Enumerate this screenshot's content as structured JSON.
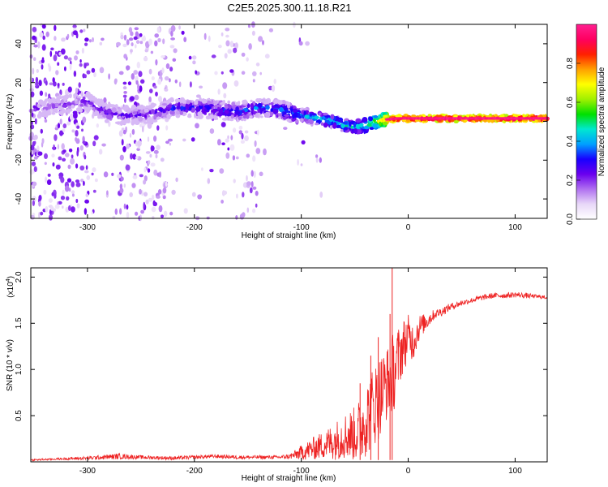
{
  "title": "C2E5.2025.300.11.18.R21",
  "chart_data": [
    {
      "type": "heatmap",
      "xlabel": "Height of straight line (km)",
      "ylabel": "Frequency (Hz)",
      "xlim": [
        -353,
        130
      ],
      "ylim": [
        -50,
        50
      ],
      "x_ticks": [
        -300,
        -200,
        -100,
        0,
        100
      ],
      "x_tick_labels": [
        "-300",
        "-200",
        "-100",
        "0",
        "100"
      ],
      "y_ticks": [
        -40,
        -20,
        0,
        20,
        40
      ],
      "y_tick_labels": [
        "-40",
        "-20",
        "0",
        "20",
        "40"
      ],
      "colorbar": {
        "label": "Normalized spectral amplitude",
        "range": [
          0,
          1
        ],
        "ticks": [
          0.0,
          0.2,
          0.4,
          0.6,
          0.8
        ],
        "tick_labels": [
          "0.0",
          "0.2",
          "0.4",
          "0.6",
          "0.8"
        ],
        "colors": [
          "#ffffff",
          "#e8d8f8",
          "#b070f0",
          "#6a00ee",
          "#1800ff",
          "#00a0ff",
          "#00e8d0",
          "#00e000",
          "#a0f000",
          "#ffff00",
          "#ffa000",
          "#ff2000",
          "#ff0060",
          "#ff2090"
        ]
      },
      "center_track": {
        "heights": [
          -345,
          -300,
          -280,
          -260,
          -240,
          -220,
          -200,
          -180,
          -160,
          -140,
          -120,
          -100,
          -90,
          -80,
          -70,
          -60,
          -50,
          -40,
          -30,
          -20,
          -10,
          0,
          50,
          100,
          130
        ],
        "frequency": [
          7,
          10,
          4,
          3,
          4,
          7,
          7,
          6,
          5,
          7,
          6,
          3,
          2,
          1,
          0,
          -2,
          -3,
          -2,
          0,
          1,
          1.5,
          1.5,
          1.5,
          1.5,
          1.5
        ],
        "amplitude": [
          0.18,
          0.22,
          0.26,
          0.24,
          0.25,
          0.28,
          0.3,
          0.32,
          0.33,
          0.34,
          0.36,
          0.38,
          0.4,
          0.42,
          0.44,
          0.45,
          0.46,
          0.5,
          0.62,
          0.82,
          0.95,
          0.96,
          0.95,
          0.95,
          0.96
        ]
      }
    },
    {
      "type": "line",
      "series_name": "SNR",
      "color": "#ee2222",
      "xlabel": "Height of straight line (km)",
      "ylabel": "SNR (10 * v/v)",
      "scale_label": "(x10",
      "scale_exponent": "4",
      "xlim": [
        -353,
        130
      ],
      "ylim": [
        0,
        2.1
      ],
      "x_ticks": [
        -300,
        -200,
        -100,
        0,
        100
      ],
      "x_tick_labels": [
        "-300",
        "-200",
        "-100",
        "0",
        "100"
      ],
      "y_ticks": [
        0.5,
        1.0,
        1.5,
        2.0
      ],
      "y_tick_labels": [
        "0.5",
        "1.0",
        "1.5",
        "2.0"
      ],
      "x": [
        -353,
        -330,
        -300,
        -270,
        -250,
        -220,
        -200,
        -180,
        -160,
        -140,
        -120,
        -110,
        -100,
        -90,
        -80,
        -70,
        -60,
        -50,
        -45,
        -40,
        -35,
        -30,
        -25,
        -20,
        -17,
        -15,
        -12,
        -10,
        -5,
        0,
        5,
        10,
        15,
        20,
        25,
        30,
        40,
        50,
        60,
        70,
        80,
        90,
        100,
        110,
        120,
        130
      ],
      "y": [
        0.02,
        0.03,
        0.04,
        0.06,
        0.05,
        0.04,
        0.05,
        0.06,
        0.05,
        0.05,
        0.05,
        0.06,
        0.1,
        0.14,
        0.18,
        0.22,
        0.28,
        0.3,
        0.35,
        0.45,
        0.55,
        0.65,
        0.75,
        0.85,
        0.9,
        0.95,
        1.0,
        1.1,
        1.25,
        1.35,
        1.3,
        1.45,
        1.5,
        1.55,
        1.6,
        1.62,
        1.68,
        1.72,
        1.75,
        1.78,
        1.8,
        1.8,
        1.81,
        1.8,
        1.79,
        1.78
      ],
      "noise_amplitude": [
        0.01,
        0.01,
        0.02,
        0.03,
        0.02,
        0.02,
        0.02,
        0.02,
        0.02,
        0.02,
        0.02,
        0.03,
        0.08,
        0.12,
        0.15,
        0.2,
        0.25,
        0.3,
        0.35,
        0.4,
        0.45,
        0.45,
        0.45,
        0.4,
        0.4,
        0.45,
        0.4,
        0.35,
        0.3,
        0.25,
        0.2,
        0.15,
        0.1,
        0.08,
        0.05,
        0.05,
        0.04,
        0.03,
        0.03,
        0.03,
        0.03,
        0.03,
        0.03,
        0.03,
        0.02,
        0.02
      ],
      "spikes": [
        {
          "x": -15,
          "y": 2.1
        },
        {
          "x": -17,
          "y": 1.6
        },
        {
          "x": -28,
          "y": 1.35
        },
        {
          "x": -35,
          "y": 1.15
        },
        {
          "x": -45,
          "y": 0.85
        }
      ]
    }
  ]
}
